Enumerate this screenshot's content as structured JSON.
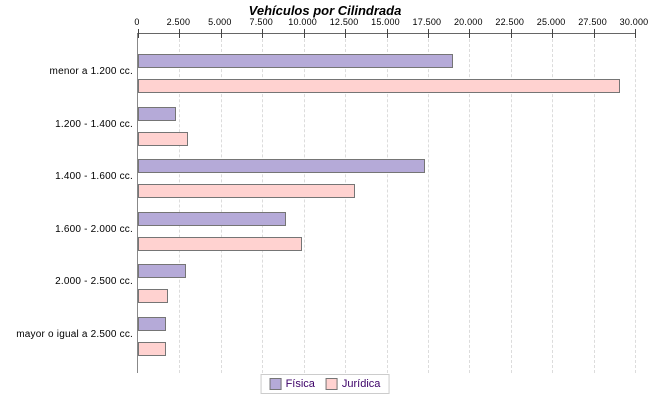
{
  "title": "Vehículos por Cilindrada",
  "chart_data": {
    "type": "bar",
    "orientation": "horizontal",
    "title": "Vehículos por Cilindrada",
    "xlabel": "",
    "ylabel": "",
    "xlim": [
      0,
      30000
    ],
    "x_ticks": [
      "0",
      "2.500",
      "5.000",
      "7.500",
      "10.000",
      "12.500",
      "15.000",
      "17.500",
      "20.000",
      "22.500",
      "25.000",
      "27.500",
      "30.000"
    ],
    "x_tick_values": [
      0,
      2500,
      5000,
      7500,
      10000,
      12500,
      15000,
      17500,
      20000,
      22500,
      25000,
      27500,
      30000
    ],
    "grid": "dashed-vertical",
    "legend_position": "bottom-center",
    "categories": [
      "menor a 1.200 cc.",
      "1.200 - 1.400 cc.",
      "1.400 - 1.600 cc.",
      "1.600 - 2.000 cc.",
      "2.000 - 2.500 cc.",
      "mayor o igual a 2.500 cc."
    ],
    "series": [
      {
        "name": "Física",
        "color": "#b5aad8",
        "values": [
          18900,
          2200,
          17200,
          8800,
          2750,
          1550
        ]
      },
      {
        "name": "Jurídica",
        "color": "#ffd2d0",
        "values": [
          29000,
          2900,
          13000,
          9800,
          1700,
          1550
        ]
      }
    ]
  },
  "colors": {
    "bar_border": "#757575",
    "gridline": "#dcdcdc",
    "axis": "#666666",
    "legend_text": "#3c0068",
    "legend_border": "#cccccc",
    "text": "#000000"
  }
}
